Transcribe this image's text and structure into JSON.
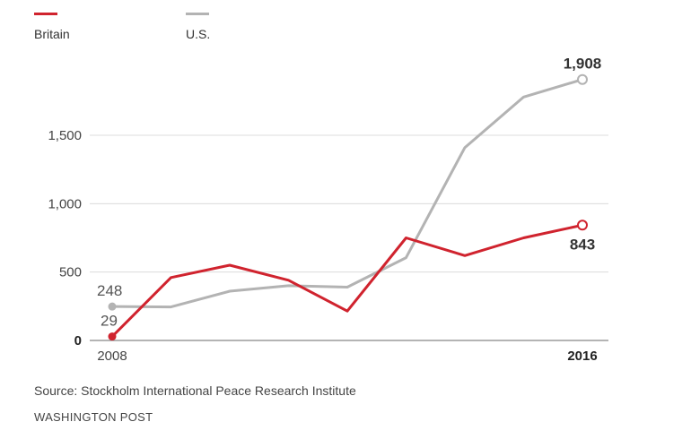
{
  "legend": [
    {
      "label": "Britain",
      "color": "#d0232e"
    },
    {
      "label": "U.S.",
      "color": "#b3b3b3"
    }
  ],
  "chart_data": {
    "type": "line",
    "x": [
      2008,
      2009,
      2010,
      2011,
      2012,
      2013,
      2014,
      2015,
      2016
    ],
    "x_tick_labels": [
      "2008",
      "2016"
    ],
    "y_ticks": [
      0,
      500,
      1000,
      1500
    ],
    "y_tick_labels": [
      "0",
      "500",
      "1,000",
      "1,500"
    ],
    "ylim": [
      0,
      2000
    ],
    "grid": true,
    "series": [
      {
        "name": "Britain",
        "color": "#d0232e",
        "values": [
          29,
          460,
          550,
          440,
          215,
          750,
          620,
          750,
          843
        ]
      },
      {
        "name": "U.S.",
        "color": "#b3b3b3",
        "values": [
          248,
          245,
          360,
          400,
          390,
          605,
          1410,
          1780,
          1908
        ]
      }
    ],
    "annotations": {
      "us_start": "248",
      "britain_start": "29",
      "us_end": "1,908",
      "britain_end": "843"
    }
  },
  "footer": {
    "source": "Source: Stockholm International Peace Research Institute",
    "brand": "WASHINGTON POST"
  }
}
